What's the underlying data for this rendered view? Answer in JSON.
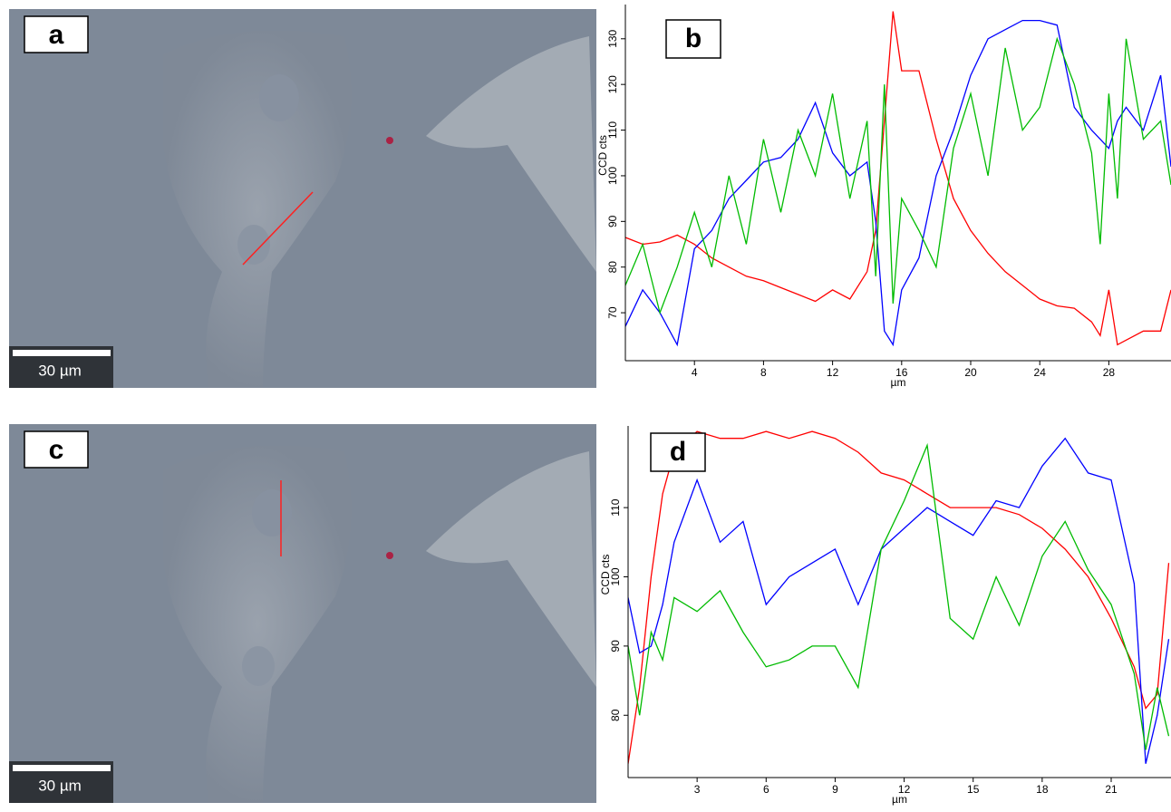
{
  "images": [
    {
      "label": "a",
      "scale_bar": "30 µm"
    },
    {
      "label": "c",
      "scale_bar": "30 µm"
    }
  ],
  "chart_data": [
    {
      "type": "line",
      "panel_label": "b",
      "ylabel": "CCD cts",
      "xlabel": "µm",
      "x": [
        0,
        1,
        2,
        3,
        4,
        5,
        6,
        7,
        8,
        9,
        10,
        11,
        12,
        13,
        14,
        14.5,
        15,
        15.5,
        16,
        17,
        18,
        19,
        20,
        21,
        22,
        23,
        24,
        25,
        26,
        27,
        27.5,
        28,
        28.5,
        29,
        30,
        31,
        31.6
      ],
      "series": [
        {
          "color": "#ff0000",
          "values": [
            86.5,
            85,
            85.5,
            87,
            85,
            82,
            80,
            78,
            77,
            75.5,
            74,
            72.5,
            75,
            73,
            79,
            88,
            112,
            136,
            123,
            123,
            108,
            95,
            88,
            83,
            79,
            76,
            73,
            71.5,
            71,
            68,
            65,
            75,
            63,
            64,
            66,
            66,
            75
          ]
        },
        {
          "color": "#0000ff",
          "values": [
            67,
            75,
            70,
            63,
            84,
            88,
            95,
            99,
            103,
            104,
            108,
            116,
            105,
            100,
            103,
            90,
            66,
            63,
            75,
            82,
            100,
            110,
            122,
            130,
            132,
            134,
            134,
            133,
            115,
            110,
            108,
            106,
            112,
            115,
            110,
            122,
            102
          ]
        },
        {
          "color": "#00bb00",
          "values": [
            76,
            85,
            70,
            80,
            92,
            80,
            100,
            85,
            108,
            92,
            110,
            100,
            118,
            95,
            112,
            78,
            120,
            72,
            95,
            88,
            80,
            106,
            118,
            100,
            128,
            110,
            115,
            130,
            120,
            105,
            85,
            118,
            95,
            130,
            108,
            112,
            98
          ]
        }
      ],
      "xlim": [
        0,
        31.6
      ],
      "ylim": [
        59.5,
        137.5
      ],
      "xticks": [
        4,
        8,
        12,
        16,
        20,
        24,
        28
      ],
      "yticks": [
        70,
        80,
        90,
        100,
        110,
        120,
        130
      ]
    },
    {
      "type": "line",
      "panel_label": "d",
      "ylabel": "CCD cts",
      "xlabel": "µm",
      "x": [
        0,
        0.5,
        1,
        1.5,
        2,
        3,
        4,
        5,
        6,
        7,
        8,
        9,
        10,
        11,
        12,
        13,
        14,
        15,
        16,
        17,
        18,
        19,
        20,
        21,
        22,
        22.5,
        23,
        23.5
      ],
      "series": [
        {
          "color": "#ff0000",
          "values": [
            73,
            84,
            100,
            112,
            118,
            121,
            120,
            120,
            121,
            120,
            121,
            120,
            118,
            115,
            114,
            112,
            110,
            110,
            110,
            109,
            107,
            104,
            100,
            94,
            87,
            81,
            83,
            102
          ]
        },
        {
          "color": "#0000ff",
          "values": [
            97,
            89,
            90,
            96,
            105,
            114,
            105,
            108,
            96,
            100,
            102,
            104,
            96,
            104,
            107,
            110,
            108,
            106,
            111,
            110,
            116,
            120,
            115,
            114,
            99,
            73,
            80,
            91
          ]
        },
        {
          "color": "#00bb00",
          "values": [
            90,
            80,
            92,
            88,
            97,
            95,
            98,
            92,
            87,
            88,
            90,
            90,
            84,
            104,
            111,
            119,
            94,
            91,
            100,
            93,
            103,
            108,
            101,
            96,
            86,
            75,
            84,
            77
          ]
        }
      ],
      "xlim": [
        0,
        23.6
      ],
      "ylim": [
        71,
        121.8
      ],
      "xticks": [
        3,
        6,
        9,
        12,
        15,
        18,
        21
      ],
      "yticks": [
        80,
        90,
        100,
        110
      ]
    }
  ]
}
